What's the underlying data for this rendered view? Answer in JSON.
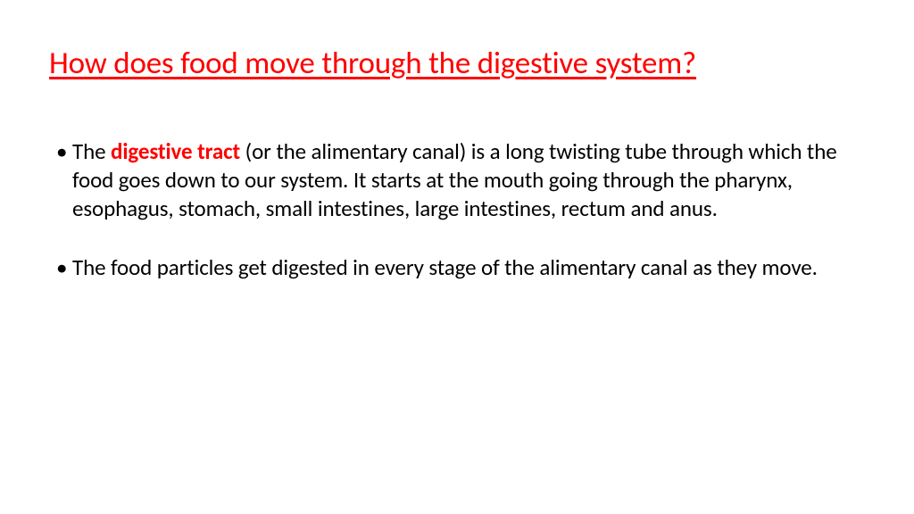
{
  "title": "How does food move through the digestive system?",
  "bullets": [
    {
      "pre": "The ",
      "keyword": "digestive tract",
      "post": " (or the alimentary canal) is a long twisting tube through which the food goes down to our system. It starts at the mouth going through the pharynx, esophagus, stomach, small intestines, large intestines, rectum and anus."
    },
    {
      "pre": "The food particles get digested in every stage of the alimentary canal as they move.",
      "keyword": "",
      "post": ""
    }
  ],
  "colors": {
    "title": "#ff0000",
    "keyword": "#ff0000",
    "body": "#000000",
    "background": "#ffffff"
  },
  "typography": {
    "title_fontsize": 35,
    "body_fontsize": 25,
    "font_family": "Calibri"
  }
}
